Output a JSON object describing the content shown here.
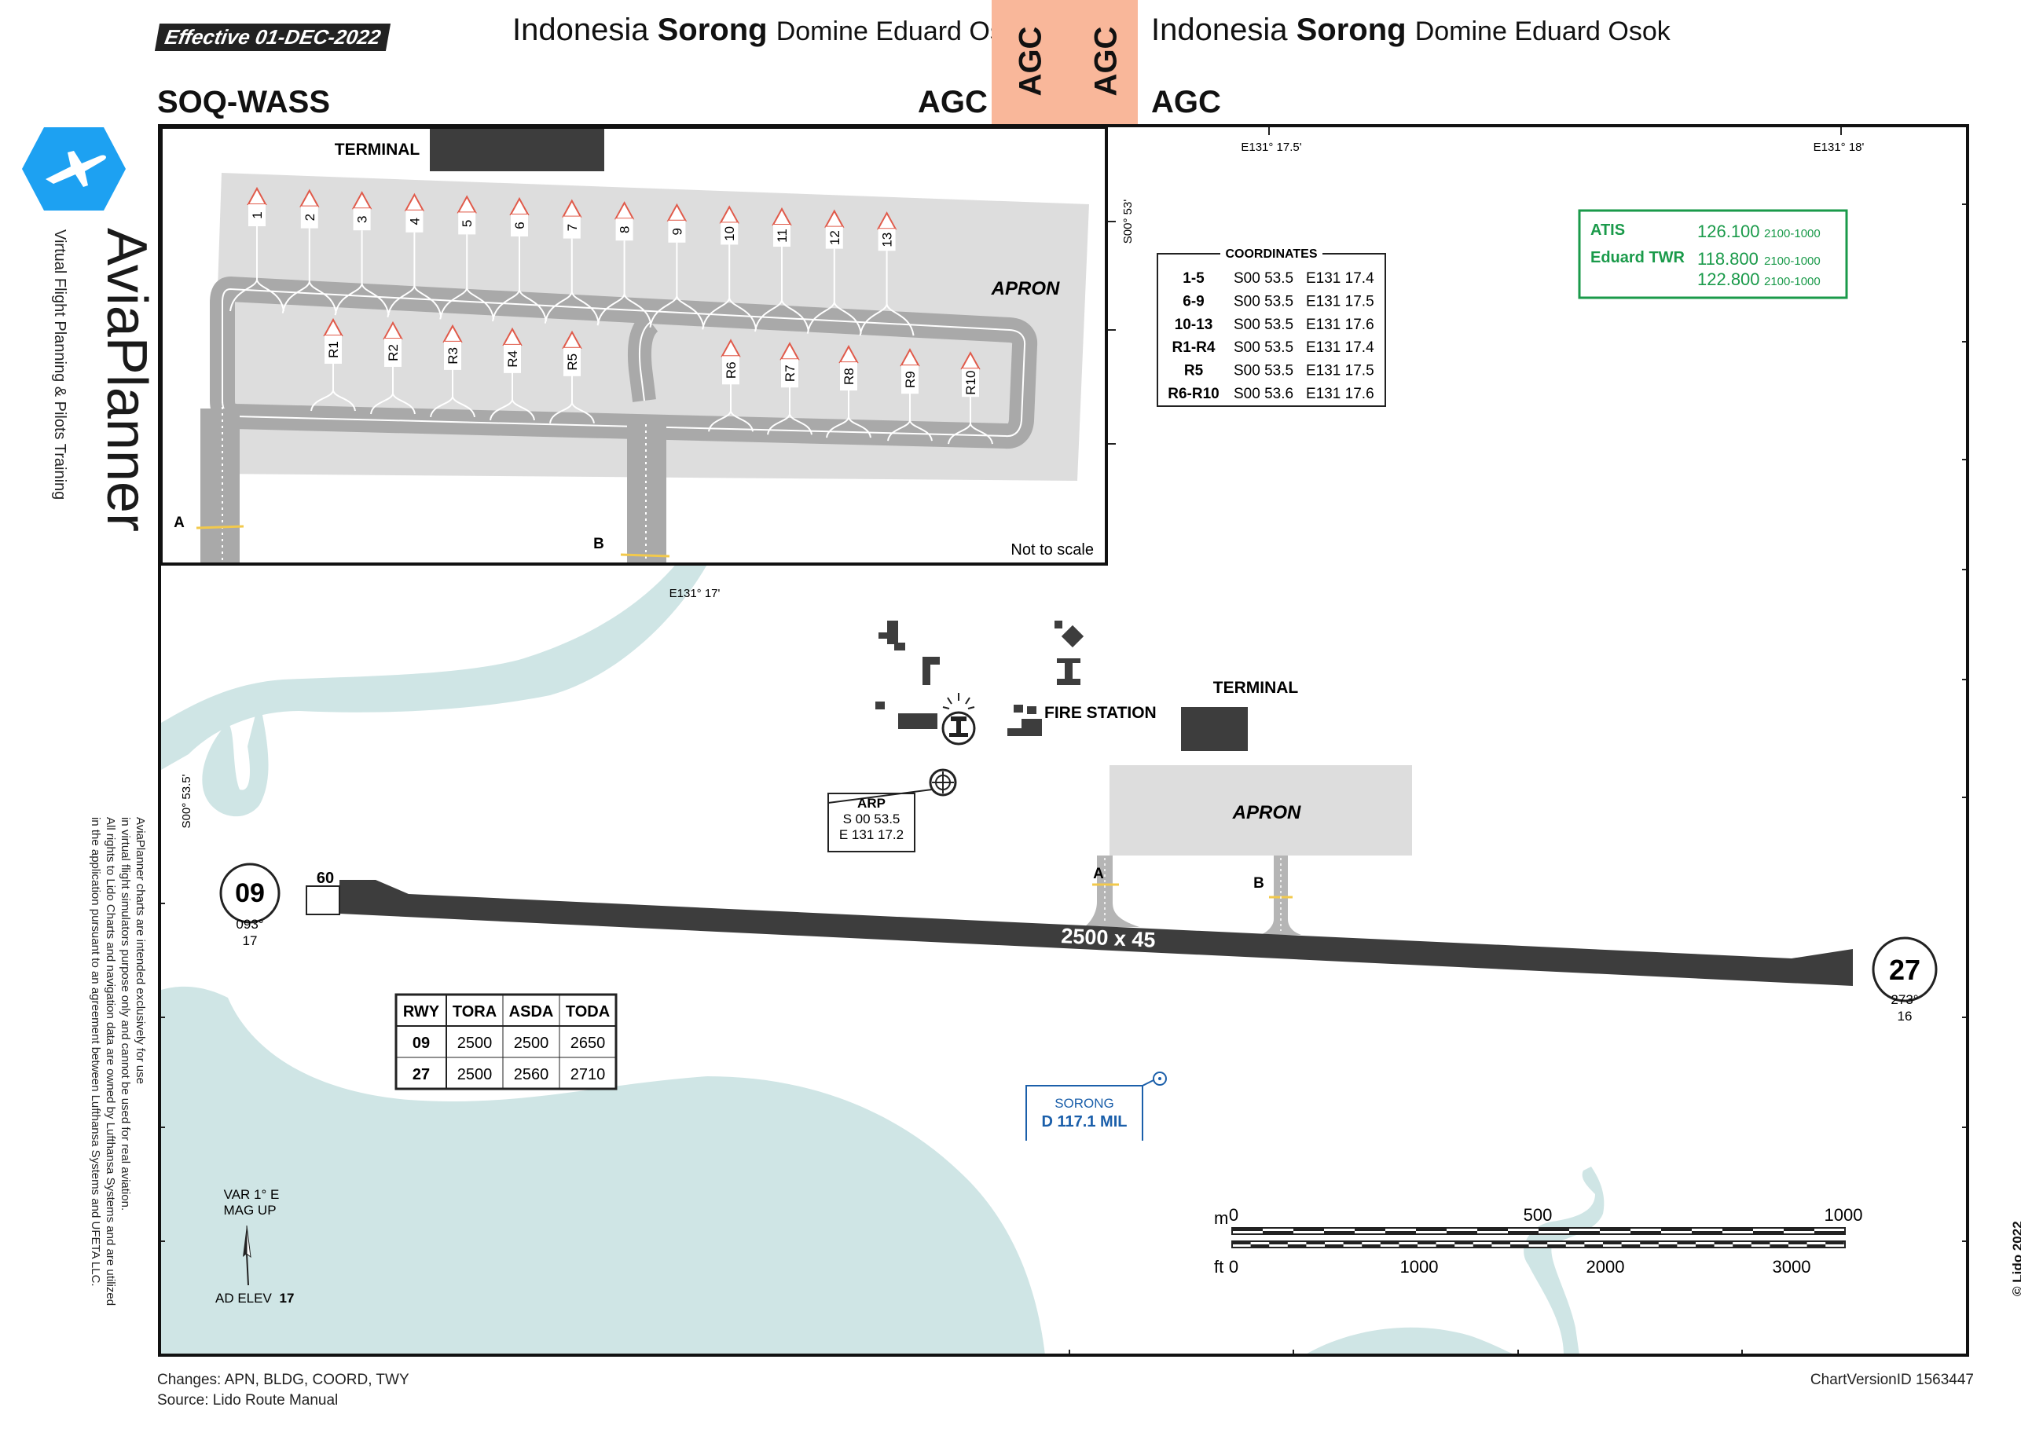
{
  "header": {
    "effective": "Effective 01-DEC-2022",
    "title_country": "Indonesia",
    "title_city": "Sorong",
    "title_airport": "Domine Eduard Osok",
    "icao_code": "SOQ-WASS",
    "iata_code": "AGC",
    "tab_code": "AGC",
    "tab_color": "#f9b79a"
  },
  "brand": {
    "name": "AviaPlanner",
    "tagline": "Virtual Flight Planning & Pilots Training",
    "logo_color": "#1da1f2"
  },
  "disclaimer": [
    "AviaPlanner charts are intended exclusively for use",
    "in virtual flight simulators purpose only and cannot be used for real aviation.",
    "All rights to Lido Charts and navigation data are owned by Lufthansa Systems and are utilized",
    "in the application pursuant to an agreement between Lufthansa Systems and UFETA LLC."
  ],
  "inset": {
    "terminal_label": "TERMINAL",
    "apron_label": "APRON",
    "stands_top": [
      "1",
      "2",
      "3",
      "4",
      "5",
      "6",
      "7",
      "8",
      "9",
      "10",
      "11",
      "12",
      "13"
    ],
    "stands_remote": [
      "R1",
      "R2",
      "R3",
      "R4",
      "R5",
      "R6",
      "R7",
      "R8",
      "R9",
      "R10"
    ],
    "taxiway_a": "A",
    "taxiway_b": "B",
    "not_to_scale": "Not to scale",
    "lon_label_1": "E131° 17.5'",
    "lon_label_2": "E131° 18'",
    "lat_label": "S00° 53'"
  },
  "coordinates": {
    "title": "COORDINATES",
    "rows": [
      {
        "stands": "1-5",
        "lat": "S00 53.5",
        "lon": "E131 17.4"
      },
      {
        "stands": "6-9",
        "lat": "S00 53.5",
        "lon": "E131 17.5"
      },
      {
        "stands": "10-13",
        "lat": "S00 53.5",
        "lon": "E131 17.6"
      },
      {
        "stands": "R1-R4",
        "lat": "S00 53.5",
        "lon": "E131 17.4"
      },
      {
        "stands": "R5",
        "lat": "S00 53.5",
        "lon": "E131 17.5"
      },
      {
        "stands": "R6-R10",
        "lat": "S00 53.6",
        "lon": "E131 17.6"
      }
    ]
  },
  "frequencies": {
    "color": "#1a9a4a",
    "rows": [
      {
        "name": "ATIS",
        "freq": "126.100",
        "hours": "2100-1000"
      },
      {
        "name": "Eduard TWR",
        "freq": "118.800",
        "hours": "2100-1000"
      },
      {
        "name": "",
        "freq": "122.800",
        "hours": "2100-1000"
      }
    ]
  },
  "main": {
    "lon_label": "E131° 17'",
    "lat_label": "S00° 53.5'",
    "fire_station": "FIRE STATION",
    "terminal": "TERMINAL",
    "apron": "APRON",
    "taxiway_a": "A",
    "taxiway_b": "B",
    "arp_title": "ARP",
    "arp_lat": "S 00 53.5",
    "arp_lon": "E 131 17.2",
    "runway_dims": "2500 x 45",
    "rwy09": {
      "number": "09",
      "bearing": "093°",
      "elev": "17",
      "threshold": "60"
    },
    "rwy27": {
      "number": "27",
      "bearing": "273°",
      "elev": "16"
    },
    "navaid_name": "SORONG",
    "navaid_freq": "D 117.1 MIL",
    "var": "VAR 1° E",
    "mag_up": "MAG UP",
    "ad_elev_label": "AD ELEV",
    "ad_elev_value": "17",
    "water_color": "#cfe5e5"
  },
  "declared_distances": {
    "headers": [
      "RWY",
      "TORA",
      "ASDA",
      "TODA"
    ],
    "rows": [
      [
        "09",
        "2500",
        "2500",
        "2650"
      ],
      [
        "27",
        "2500",
        "2560",
        "2710"
      ]
    ]
  },
  "scale": {
    "m_label": "m",
    "ft_label": "ft",
    "m_ticks": [
      "0",
      "500",
      "1000"
    ],
    "ft_ticks": [
      "0",
      "1000",
      "2000",
      "3000"
    ]
  },
  "footer": {
    "changes": "Changes: APN, BLDG, COORD, TWY",
    "source": "Source: Lido Route Manual",
    "version": "ChartVersionID 1563447",
    "copyright": "© Lido 2022"
  }
}
